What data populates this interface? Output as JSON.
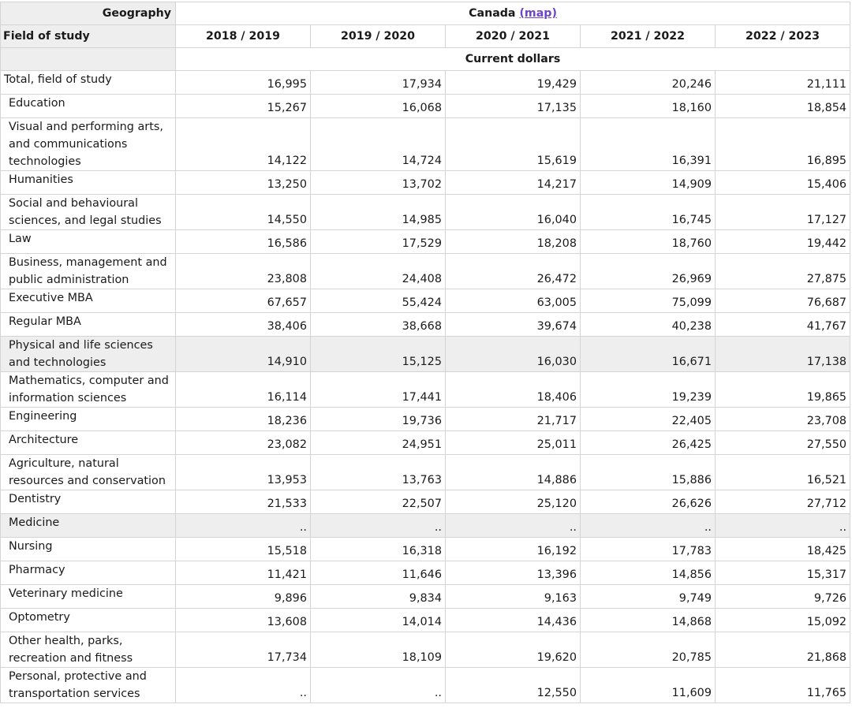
{
  "header": {
    "geography_label": "Geography",
    "geography_value": "Canada",
    "map_link": "(map)",
    "field_label": "Field of study",
    "years": [
      "2018 / 2019",
      "2019 / 2020",
      "2020 / 2021",
      "2021 / 2022",
      "2022 / 2023"
    ],
    "units": "Current dollars"
  },
  "rows": [
    {
      "field": "Total, field of study",
      "values": [
        "16,995",
        "17,934",
        "19,429",
        "20,246",
        "21,111"
      ]
    },
    {
      "field": "Education",
      "values": [
        "15,267",
        "16,068",
        "17,135",
        "18,160",
        "18,854"
      ]
    },
    {
      "field": "Visual and performing arts, and communications technologies",
      "values": [
        "14,122",
        "14,724",
        "15,619",
        "16,391",
        "16,895"
      ]
    },
    {
      "field": "Humanities",
      "values": [
        "13,250",
        "13,702",
        "14,217",
        "14,909",
        "15,406"
      ]
    },
    {
      "field": "Social and behavioural sciences, and legal studies",
      "values": [
        "14,550",
        "14,985",
        "16,040",
        "16,745",
        "17,127"
      ]
    },
    {
      "field": "Law",
      "values": [
        "16,586",
        "17,529",
        "18,208",
        "18,760",
        "19,442"
      ]
    },
    {
      "field": "Business, management and public administration",
      "values": [
        "23,808",
        "24,408",
        "26,472",
        "26,969",
        "27,875"
      ]
    },
    {
      "field": "Executive MBA",
      "values": [
        "67,657",
        "55,424",
        "63,005",
        "75,099",
        "76,687"
      ]
    },
    {
      "field": "Regular MBA",
      "values": [
        "38,406",
        "38,668",
        "39,674",
        "40,238",
        "41,767"
      ]
    },
    {
      "field": "Physical and life sciences and technologies",
      "values": [
        "14,910",
        "15,125",
        "16,030",
        "16,671",
        "17,138"
      ]
    },
    {
      "field": "Mathematics, computer and information sciences",
      "values": [
        "16,114",
        "17,441",
        "18,406",
        "19,239",
        "19,865"
      ]
    },
    {
      "field": "Engineering",
      "values": [
        "18,236",
        "19,736",
        "21,717",
        "22,405",
        "23,708"
      ]
    },
    {
      "field": "Architecture",
      "values": [
        "23,082",
        "24,951",
        "25,011",
        "26,425",
        "27,550"
      ]
    },
    {
      "field": "Agriculture, natural resources and conservation",
      "values": [
        "13,953",
        "13,763",
        "14,886",
        "15,886",
        "16,521"
      ]
    },
    {
      "field": "Dentistry",
      "values": [
        "21,533",
        "22,507",
        "25,120",
        "26,626",
        "27,712"
      ]
    },
    {
      "field": "Medicine",
      "values": [
        "..",
        "..",
        "..",
        "..",
        ".."
      ]
    },
    {
      "field": "Nursing",
      "values": [
        "15,518",
        "16,318",
        "16,192",
        "17,783",
        "18,425"
      ]
    },
    {
      "field": "Pharmacy",
      "values": [
        "11,421",
        "11,646",
        "13,396",
        "14,856",
        "15,317"
      ]
    },
    {
      "field": "Veterinary medicine",
      "values": [
        "9,896",
        "9,834",
        "9,163",
        "9,749",
        "9,726"
      ]
    },
    {
      "field": "Optometry",
      "values": [
        "13,608",
        "14,014",
        "14,436",
        "14,868",
        "15,092"
      ]
    },
    {
      "field": "Other health, parks, recreation and fitness",
      "values": [
        "17,734",
        "18,109",
        "19,620",
        "20,785",
        "21,868"
      ]
    },
    {
      "field": "Personal, protective and transportation services",
      "values": [
        "..",
        "..",
        "12,550",
        "11,609",
        "11,765"
      ]
    }
  ]
}
